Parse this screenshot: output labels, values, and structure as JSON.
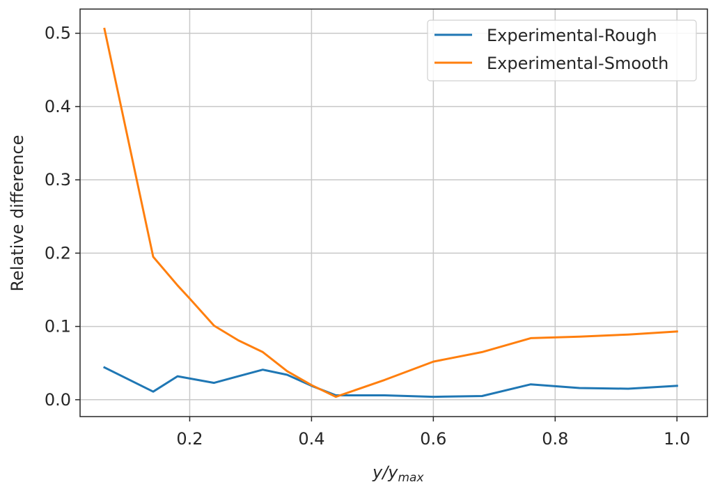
{
  "chart_data": {
    "type": "line",
    "xlabel_main": "y/y",
    "xlabel_sub": "max",
    "ylabel": "Relative difference",
    "xlim": [
      0.02,
      1.05
    ],
    "ylim": [
      -0.023,
      0.533
    ],
    "x_ticks": [
      0.2,
      0.4,
      0.6,
      0.8,
      1.0
    ],
    "x_tick_labels": [
      "0.2",
      "0.4",
      "0.6",
      "0.8",
      "1.0"
    ],
    "y_ticks": [
      0.0,
      0.1,
      0.2,
      0.3,
      0.4,
      0.5
    ],
    "y_tick_labels": [
      "0.0",
      "0.1",
      "0.2",
      "0.3",
      "0.4",
      "0.5"
    ],
    "grid": true,
    "legend_position": "top-right",
    "series": [
      {
        "name": "Experimental-Rough",
        "color": "#1f77b4",
        "x": [
          0.06,
          0.14,
          0.18,
          0.24,
          0.28,
          0.32,
          0.36,
          0.4,
          0.44,
          0.52,
          0.6,
          0.68,
          0.76,
          0.84,
          0.92,
          1.0
        ],
        "y": [
          0.044,
          0.011,
          0.032,
          0.023,
          0.032,
          0.041,
          0.034,
          0.019,
          0.006,
          0.006,
          0.004,
          0.005,
          0.021,
          0.016,
          0.015,
          0.019
        ]
      },
      {
        "name": "Experimental-Smooth",
        "color": "#ff7f0e",
        "x": [
          0.06,
          0.14,
          0.18,
          0.2,
          0.24,
          0.28,
          0.32,
          0.36,
          0.4,
          0.44,
          0.52,
          0.6,
          0.68,
          0.76,
          0.84,
          0.92,
          1.0
        ],
        "y": [
          0.506,
          0.195,
          0.156,
          0.138,
          0.101,
          0.081,
          0.065,
          0.039,
          0.02,
          0.004,
          0.027,
          0.052,
          0.065,
          0.084,
          0.086,
          0.089,
          0.093
        ]
      }
    ]
  }
}
